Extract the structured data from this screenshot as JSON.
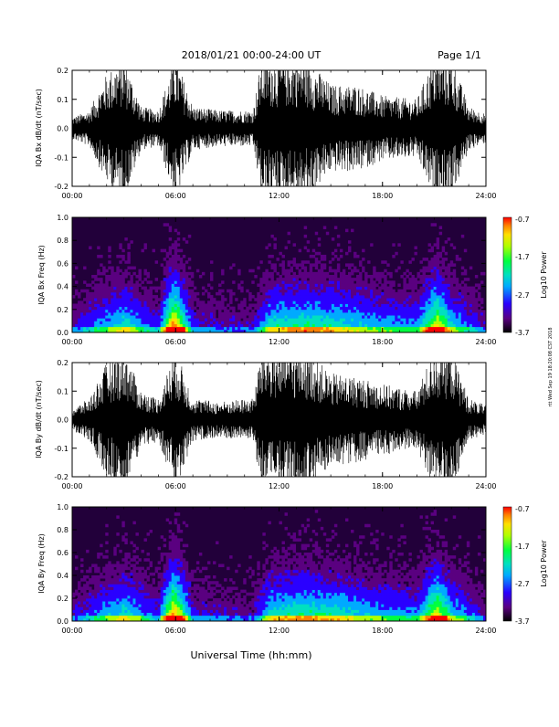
{
  "header": {
    "title": "2018/01/21   00:00-24:00 UT",
    "page": "Page 1/1"
  },
  "footer": {
    "xlabel": "Universal Time (hh:mm)"
  },
  "side_stamp": "rtt Wed Sep 19 18:20:08 CST 2018",
  "colors": {
    "cb": [
      "#000000",
      "#5a0080",
      "#2a00ff",
      "#00aaff",
      "#00e0c0",
      "#00ff40",
      "#b0ff00",
      "#ffe000",
      "#ff8000",
      "#ff0000"
    ]
  },
  "chart_data": [
    {
      "type": "line",
      "ylabel": "IQA Bx dB/dt (nT/sec)",
      "xlim": [
        "00:00",
        "24:00"
      ],
      "xticks": [
        "00:00",
        "06:00",
        "12:00",
        "18:00",
        "24:00"
      ],
      "ylim": [
        -0.2,
        0.2
      ],
      "yticks": [
        "-0.2",
        "-0.1",
        "0.0",
        "0.1",
        "0.2"
      ],
      "activity": [
        {
          "x": 0.0,
          "amp": 0.03
        },
        {
          "x": 1.0,
          "amp": 0.05
        },
        {
          "x": 2.0,
          "amp": 0.15
        },
        {
          "x": 3.0,
          "amp": 0.2
        },
        {
          "x": 4.0,
          "amp": 0.06
        },
        {
          "x": 5.0,
          "amp": 0.05
        },
        {
          "x": 6.0,
          "amp": 0.2
        },
        {
          "x": 7.0,
          "amp": 0.06
        },
        {
          "x": 8.5,
          "amp": 0.05
        },
        {
          "x": 10.5,
          "amp": 0.05
        },
        {
          "x": 11.0,
          "amp": 0.2
        },
        {
          "x": 13.5,
          "amp": 0.2
        },
        {
          "x": 15.0,
          "amp": 0.12
        },
        {
          "x": 16.5,
          "amp": 0.12
        },
        {
          "x": 18.0,
          "amp": 0.09
        },
        {
          "x": 20.0,
          "amp": 0.08
        },
        {
          "x": 21.0,
          "amp": 0.2
        },
        {
          "x": 22.0,
          "amp": 0.2
        },
        {
          "x": 23.0,
          "amp": 0.06
        },
        {
          "x": 24.0,
          "amp": 0.04
        }
      ]
    },
    {
      "type": "heatmap",
      "ylabel": "IQA Bx Freq (Hz)",
      "xlim": [
        "00:00",
        "24:00"
      ],
      "xticks": [
        "00:00",
        "06:00",
        "12:00",
        "18:00",
        "24:00"
      ],
      "ylim": [
        0.0,
        1.0
      ],
      "yticks": [
        "0.0",
        "0.2",
        "0.4",
        "0.6",
        "0.8",
        "1.0"
      ],
      "colorbar": {
        "label": "Log10 Power",
        "ticks": [
          "-0.7",
          "-1.7",
          "-2.7",
          "-3.7"
        ],
        "range": [
          -3.7,
          -0.7
        ]
      },
      "activity": [
        {
          "x": 0.0,
          "level": 0.15
        },
        {
          "x": 2.0,
          "level": 0.35
        },
        {
          "x": 3.0,
          "level": 0.45
        },
        {
          "x": 5.0,
          "level": 0.2
        },
        {
          "x": 5.9,
          "level": 0.9
        },
        {
          "x": 7.0,
          "level": 0.2
        },
        {
          "x": 10.5,
          "level": 0.15
        },
        {
          "x": 11.5,
          "level": 0.45
        },
        {
          "x": 13.5,
          "level": 0.5
        },
        {
          "x": 15.5,
          "level": 0.45
        },
        {
          "x": 17.5,
          "level": 0.35
        },
        {
          "x": 20.0,
          "level": 0.3
        },
        {
          "x": 21.2,
          "level": 0.75
        },
        {
          "x": 22.0,
          "level": 0.4
        },
        {
          "x": 24.0,
          "level": 0.15
        }
      ]
    },
    {
      "type": "line",
      "ylabel": "IQA By dB/dt (nT/sec)",
      "xlim": [
        "00:00",
        "24:00"
      ],
      "xticks": [
        "00:00",
        "06:00",
        "12:00",
        "18:00",
        "24:00"
      ],
      "ylim": [
        -0.2,
        0.2
      ],
      "yticks": [
        "-0.2",
        "-0.1",
        "0.0",
        "0.1",
        "0.2"
      ],
      "activity": [
        {
          "x": 0.0,
          "amp": 0.03
        },
        {
          "x": 1.0,
          "amp": 0.06
        },
        {
          "x": 2.0,
          "amp": 0.16
        },
        {
          "x": 3.0,
          "amp": 0.2
        },
        {
          "x": 4.0,
          "amp": 0.08
        },
        {
          "x": 5.0,
          "amp": 0.06
        },
        {
          "x": 6.0,
          "amp": 0.2
        },
        {
          "x": 7.0,
          "amp": 0.06
        },
        {
          "x": 8.5,
          "amp": 0.05
        },
        {
          "x": 10.5,
          "amp": 0.06
        },
        {
          "x": 11.0,
          "amp": 0.2
        },
        {
          "x": 13.5,
          "amp": 0.2
        },
        {
          "x": 15.0,
          "amp": 0.13
        },
        {
          "x": 16.5,
          "amp": 0.12
        },
        {
          "x": 18.0,
          "amp": 0.1
        },
        {
          "x": 20.0,
          "amp": 0.08
        },
        {
          "x": 21.0,
          "amp": 0.2
        },
        {
          "x": 22.0,
          "amp": 0.2
        },
        {
          "x": 23.0,
          "amp": 0.06
        },
        {
          "x": 24.0,
          "amp": 0.04
        }
      ]
    },
    {
      "type": "heatmap",
      "ylabel": "IQA By Freq (Hz)",
      "xlim": [
        "00:00",
        "24:00"
      ],
      "xticks": [
        "00:00",
        "06:00",
        "12:00",
        "18:00",
        "24:00"
      ],
      "ylim": [
        0.0,
        1.0
      ],
      "yticks": [
        "0.0",
        "0.2",
        "0.4",
        "0.6",
        "0.8",
        "1.0"
      ],
      "colorbar": {
        "label": "Log10 Power",
        "ticks": [
          "-0.7",
          "-1.7",
          "-2.7",
          "-3.7"
        ],
        "range": [
          -3.7,
          -0.7
        ]
      },
      "activity": [
        {
          "x": 0.0,
          "level": 0.15
        },
        {
          "x": 2.0,
          "level": 0.35
        },
        {
          "x": 3.0,
          "level": 0.45
        },
        {
          "x": 5.0,
          "level": 0.2
        },
        {
          "x": 5.9,
          "level": 0.9
        },
        {
          "x": 7.0,
          "level": 0.2
        },
        {
          "x": 10.5,
          "level": 0.15
        },
        {
          "x": 11.5,
          "level": 0.45
        },
        {
          "x": 13.5,
          "level": 0.5
        },
        {
          "x": 15.5,
          "level": 0.45
        },
        {
          "x": 17.5,
          "level": 0.35
        },
        {
          "x": 20.0,
          "level": 0.3
        },
        {
          "x": 21.2,
          "level": 0.75
        },
        {
          "x": 22.0,
          "level": 0.4
        },
        {
          "x": 24.0,
          "level": 0.15
        }
      ]
    }
  ]
}
